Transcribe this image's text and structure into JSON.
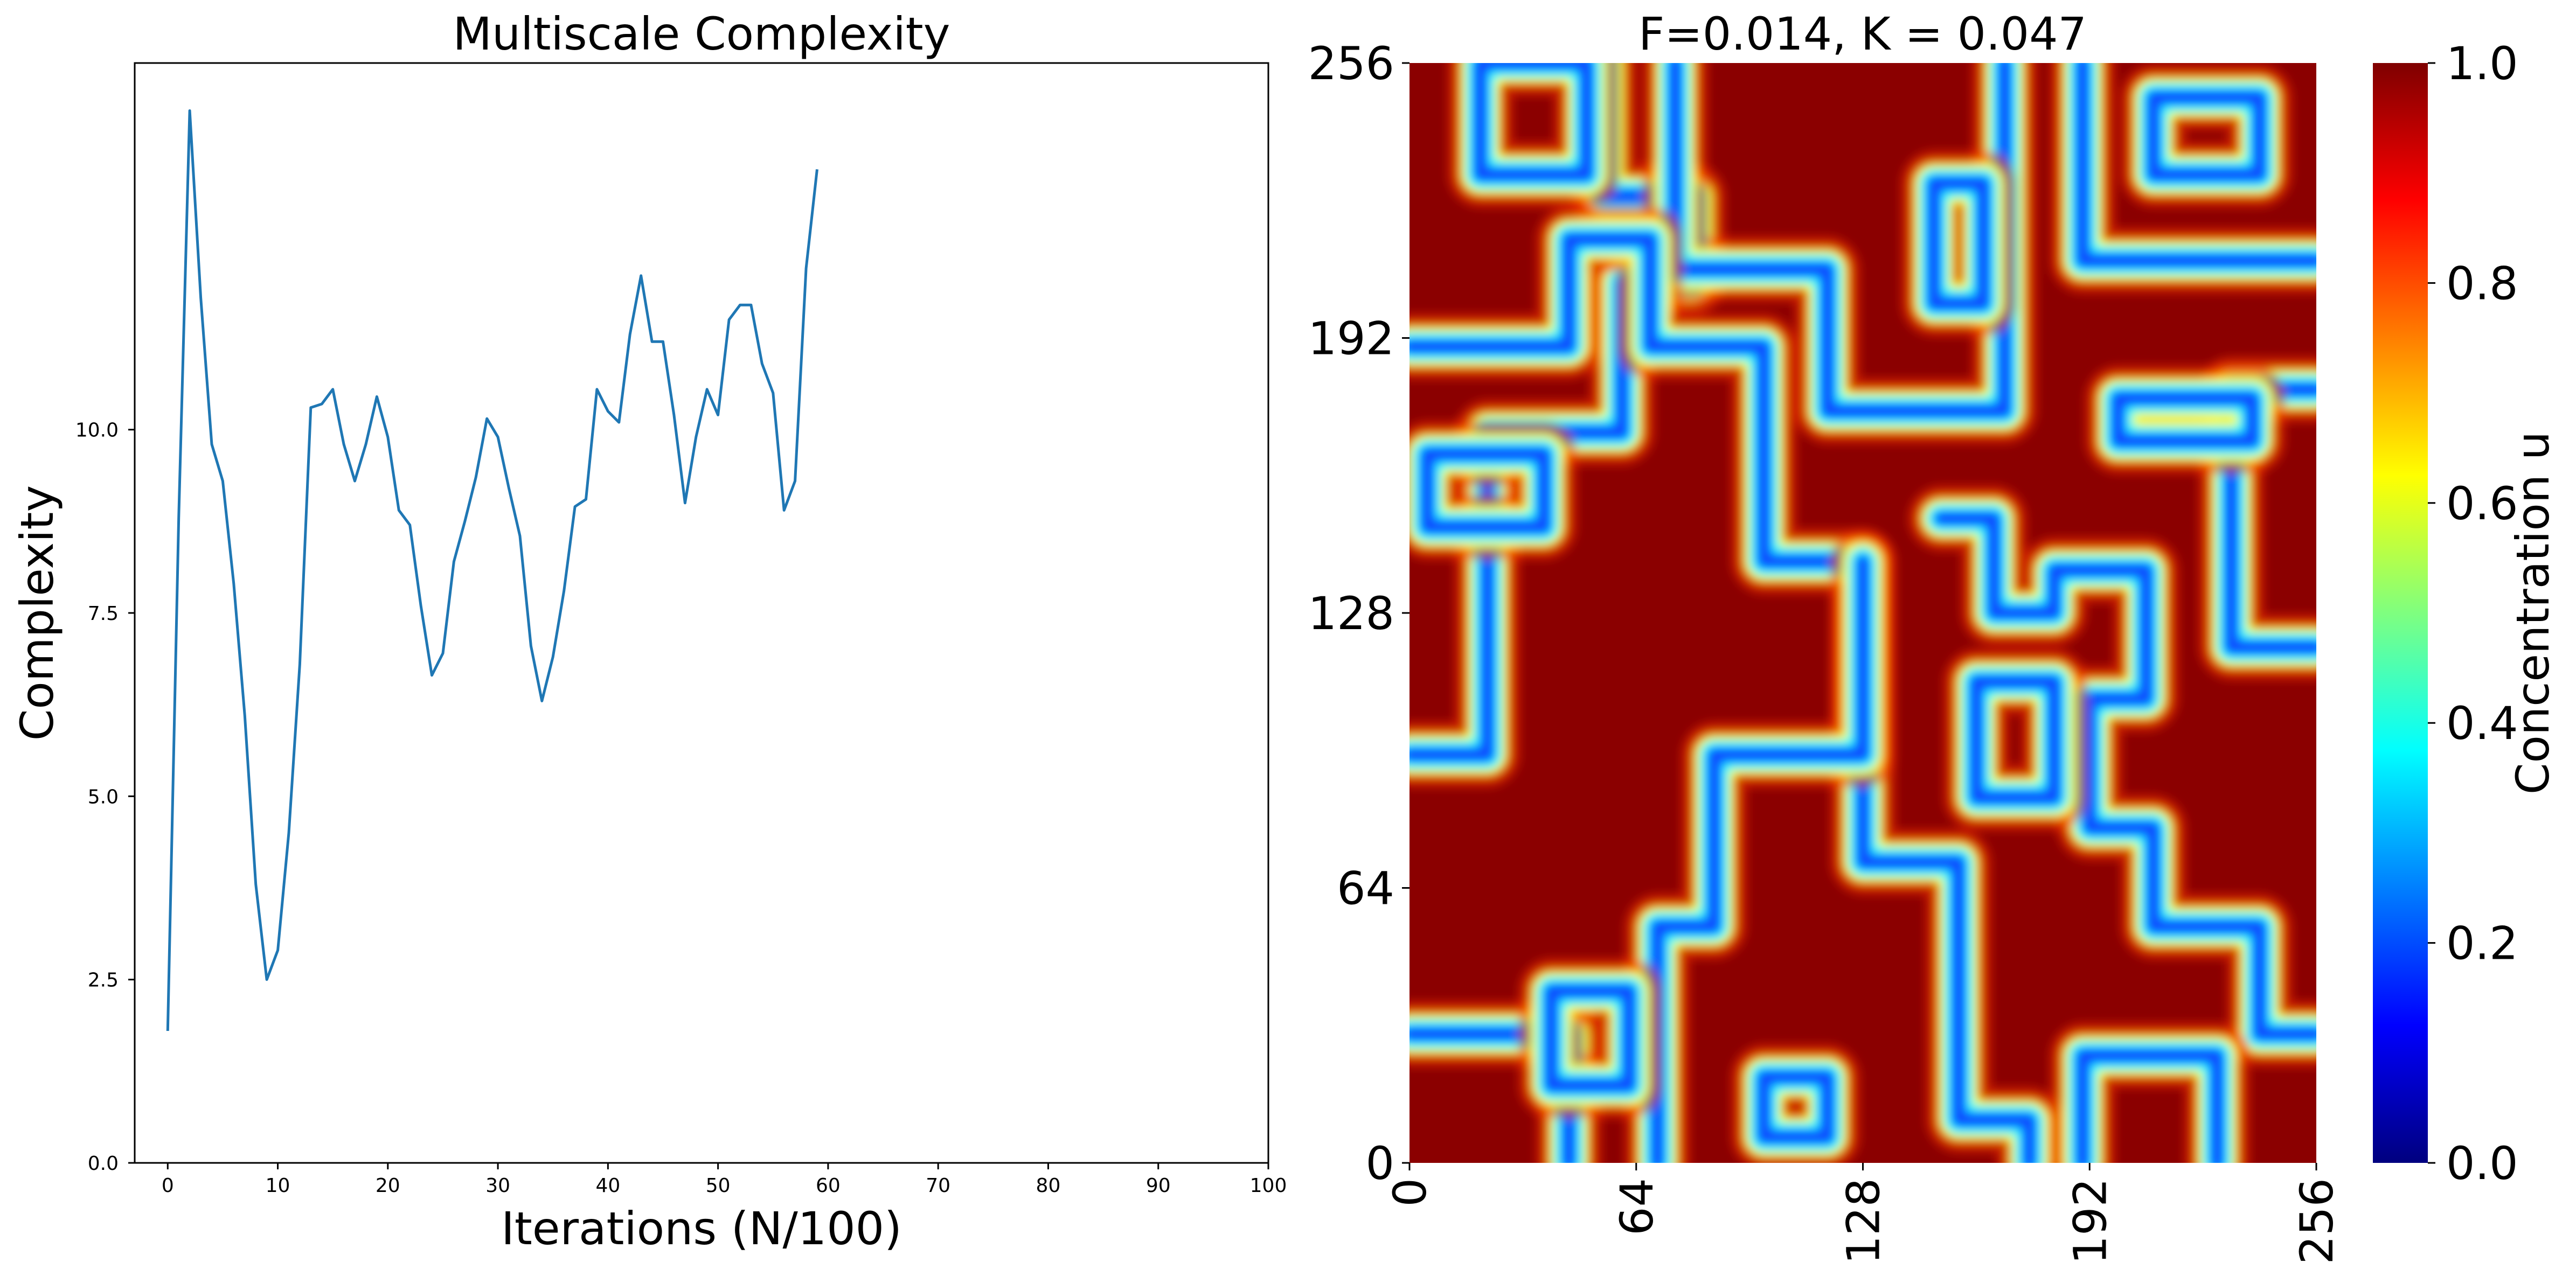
{
  "chart_data": [
    {
      "type": "line",
      "title": "Multiscale Complexity",
      "xlabel": "Iterations (N/100)",
      "ylabel": "Complexity",
      "xlim": [
        -3,
        100
      ],
      "ylim": [
        0,
        15
      ],
      "xticks": [
        0,
        10,
        20,
        30,
        40,
        50,
        60,
        70,
        80,
        90,
        100
      ],
      "xtick_labels": [
        "0",
        "10",
        "20",
        "30",
        "40",
        "50",
        "60",
        "70",
        "80",
        "90",
        "100"
      ],
      "yticks": [
        0,
        2.5,
        5,
        7.5,
        10
      ],
      "ytick_labels": [
        "0.0",
        "2.5",
        "5.0",
        "7.5",
        "10.0"
      ],
      "grid": false,
      "series": [
        {
          "color": "#1f77b4",
          "x": [
            0,
            1,
            2,
            3,
            4,
            5,
            6,
            7,
            8,
            9,
            10,
            11,
            12,
            13,
            14,
            15,
            16,
            17,
            18,
            19,
            20,
            21,
            22,
            23,
            24,
            25,
            26,
            27,
            28,
            29,
            30,
            31,
            32,
            33,
            34,
            35,
            36,
            37,
            38,
            39,
            40,
            41,
            42,
            43,
            44,
            45,
            46,
            47,
            48,
            49,
            50,
            51,
            52,
            53,
            54,
            55,
            56,
            57,
            58,
            59
          ],
          "y": [
            1.8,
            8.8,
            14.35,
            11.8,
            9.8,
            9.3,
            7.9,
            6.1,
            3.8,
            2.5,
            2.9,
            4.5,
            6.8,
            10.3,
            10.35,
            10.55,
            9.8,
            9.3,
            9.8,
            10.45,
            9.9,
            8.9,
            8.7,
            7.6,
            6.65,
            6.95,
            8.2,
            8.75,
            9.35,
            10.15,
            9.9,
            9.2,
            8.55,
            7.05,
            6.3,
            6.9,
            7.8,
            8.95,
            9.05,
            10.55,
            10.25,
            10.1,
            11.3,
            12.1,
            11.2,
            11.2,
            10.2,
            9.0,
            9.9,
            10.55,
            10.2,
            11.5,
            11.7,
            11.7,
            10.9,
            10.5,
            8.9,
            9.3,
            12.2,
            13.55
          ]
        }
      ]
    },
    {
      "type": "heatmap",
      "title": "F=0.014, K = 0.047",
      "xlim": [
        0,
        256
      ],
      "ylim": [
        0,
        256
      ],
      "xticks": [
        0,
        64,
        128,
        192,
        256
      ],
      "xtick_labels": [
        "0",
        "64",
        "128",
        "192",
        "256"
      ],
      "yticks": [
        0,
        64,
        128,
        192,
        256
      ],
      "ytick_labels": [
        "0",
        "64",
        "128",
        "192",
        "256"
      ],
      "colormap": "jet",
      "colorbar": {
        "label": "Concentration u",
        "range": [
          0,
          1
        ],
        "ticks": [
          0,
          0.2,
          0.4,
          0.6,
          0.8,
          1.0
        ],
        "tick_labels": [
          "0.0",
          "0.2",
          "0.4",
          "0.6",
          "0.8",
          "1.0"
        ],
        "stops": [
          "#00007f",
          "#0000ff",
          "#007fff",
          "#00ffff",
          "#7fff7f",
          "#ffff00",
          "#ff7f00",
          "#ff0000",
          "#7f0000"
        ]
      },
      "background_color": "#8b0000",
      "regions_description": [
        {
          "shape": "path",
          "points": [
            [
              0,
              95
            ],
            [
              22,
              95
            ],
            [
              22,
              170
            ],
            [
              60,
              170
            ],
            [
              60,
              205
            ],
            [
              80,
              205
            ],
            [
              80,
              225
            ],
            [
              55,
              225
            ],
            [
              55,
              256
            ]
          ]
        },
        {
          "shape": "path",
          "points": [
            [
              75,
              256
            ],
            [
              75,
              208
            ],
            [
              118,
              208
            ],
            [
              118,
              175
            ],
            [
              168,
              175
            ],
            [
              168,
              256
            ]
          ]
        },
        {
          "shape": "path",
          "points": [
            [
              190,
              256
            ],
            [
              190,
              210
            ],
            [
              256,
              210
            ]
          ]
        },
        {
          "shape": "path",
          "points": [
            [
              0,
              190
            ],
            [
              45,
              190
            ],
            [
              45,
              215
            ],
            [
              68,
              215
            ],
            [
              68,
              190
            ],
            [
              100,
              190
            ],
            [
              100,
              140
            ],
            [
              128,
              140
            ],
            [
              128,
              70
            ],
            [
              155,
              70
            ],
            [
              155,
              10
            ],
            [
              175,
              10
            ],
            [
              175,
              0
            ]
          ]
        },
        {
          "shape": "path",
          "points": [
            [
              150,
              150
            ],
            [
              165,
              150
            ],
            [
              165,
              128
            ],
            [
              182,
              128
            ],
            [
              182,
              138
            ],
            [
              208,
              138
            ],
            [
              208,
              108
            ],
            [
              192,
              108
            ],
            [
              192,
              78
            ],
            [
              210,
              78
            ],
            [
              210,
              55
            ],
            [
              240,
              55
            ],
            [
              240,
              30
            ],
            [
              256,
              30
            ]
          ]
        },
        {
          "shape": "path",
          "points": [
            [
              256,
              180
            ],
            [
              232,
              180
            ],
            [
              232,
              120
            ],
            [
              256,
              120
            ]
          ]
        },
        {
          "shape": "path",
          "points": [
            [
              0,
              30
            ],
            [
              45,
              30
            ],
            [
              45,
              0
            ]
          ]
        },
        {
          "shape": "path",
          "points": [
            [
              70,
              0
            ],
            [
              70,
              55
            ],
            [
              86,
              55
            ],
            [
              86,
              95
            ],
            [
              128,
              95
            ],
            [
              128,
              140
            ]
          ]
        },
        {
          "shape": "path",
          "points": [
            [
              190,
              0
            ],
            [
              190,
              25
            ],
            [
              228,
              25
            ],
            [
              228,
              0
            ]
          ]
        },
        {
          "shape": "loop",
          "points": [
            [
              5,
              165
            ],
            [
              38,
              165
            ],
            [
              38,
              148
            ],
            [
              5,
              148
            ]
          ]
        },
        {
          "shape": "loop",
          "points": [
            [
              148,
              228
            ],
            [
              162,
              228
            ],
            [
              162,
              200
            ],
            [
              148,
              200
            ]
          ]
        },
        {
          "shape": "loop",
          "points": [
            [
              160,
              112
            ],
            [
              182,
              112
            ],
            [
              182,
              85
            ],
            [
              160,
              85
            ]
          ]
        },
        {
          "shape": "loop",
          "points": [
            [
              20,
              256
            ],
            [
              50,
              256
            ],
            [
              50,
              230
            ],
            [
              20,
              230
            ]
          ]
        },
        {
          "shape": "loop",
          "points": [
            [
              210,
              248
            ],
            [
              240,
              248
            ],
            [
              240,
              230
            ],
            [
              210,
              230
            ]
          ]
        },
        {
          "shape": "loop",
          "points": [
            [
              200,
              178
            ],
            [
              238,
              178
            ],
            [
              238,
              168
            ],
            [
              200,
              168
            ]
          ]
        },
        {
          "shape": "loop",
          "points": [
            [
              40,
              40
            ],
            [
              62,
              40
            ],
            [
              62,
              18
            ],
            [
              40,
              18
            ]
          ]
        },
        {
          "shape": "loop",
          "points": [
            [
              100,
              20
            ],
            [
              118,
              20
            ],
            [
              118,
              6
            ],
            [
              100,
              6
            ]
          ]
        }
      ]
    }
  ]
}
